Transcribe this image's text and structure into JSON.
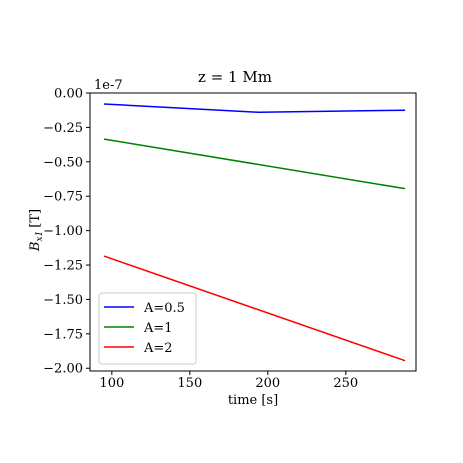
{
  "chart_data": {
    "type": "line",
    "title": "z = 1 Mm",
    "xlabel": "time [s]",
    "ylabel_main": "B",
    "ylabel_sub": "x1",
    "ylabel_unit": "[T]",
    "offset_text": "1e-7",
    "xlim": [
      86,
      295
    ],
    "ylim": [
      -2.02,
      0.0
    ],
    "xticks": [
      100,
      150,
      200,
      250
    ],
    "xtick_labels": [
      "100",
      "150",
      "200",
      "250"
    ],
    "yticks": [
      0.0,
      -0.25,
      -0.5,
      -0.75,
      -1.0,
      -1.25,
      -1.5,
      -1.75,
      -2.0
    ],
    "ytick_labels": [
      "0.00",
      "−0.25",
      "−0.50",
      "−0.75",
      "−1.00",
      "−1.25",
      "−1.50",
      "−1.75",
      "−2.00"
    ],
    "grid": false,
    "legend_position": "lower-left",
    "series": [
      {
        "name": "A=0.5",
        "color": "#0000ff",
        "x": [
          95,
          194,
          288
        ],
        "y": [
          -0.08,
          -0.14,
          -0.125
        ]
      },
      {
        "name": "A=1",
        "color": "#008000",
        "x": [
          95,
          288
        ],
        "y": [
          -0.335,
          -0.695
        ]
      },
      {
        "name": "A=2",
        "color": "#ff0000",
        "x": [
          95,
          288
        ],
        "y": [
          -1.185,
          -1.945
        ]
      }
    ]
  }
}
